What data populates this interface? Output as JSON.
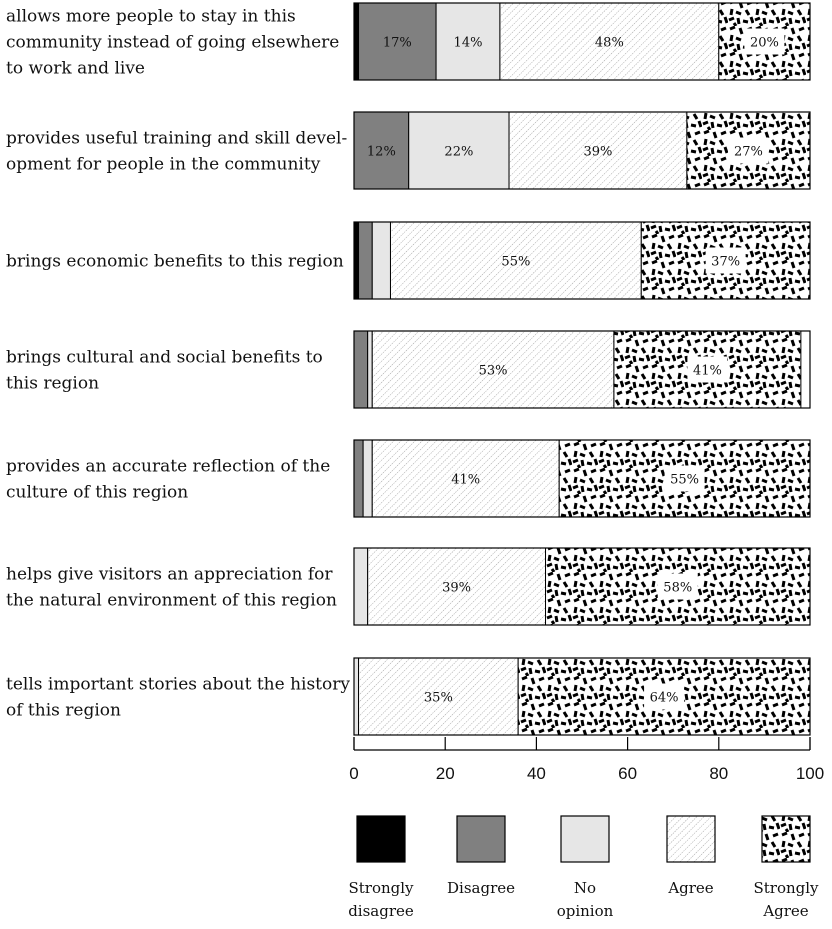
{
  "chart_data": {
    "type": "bar",
    "orientation": "horizontal",
    "stacked": true,
    "categories": [
      "allows more people to stay in this community instead of going elsewhere to work and live",
      "provides useful training and skill development for people in the community",
      "brings economic benefits to this region",
      "brings cultural and social benefits to this region",
      "provides an accurate reflection of the culture of this region",
      "helps give visitors an appreciation for the natural environment of this region",
      "tells important stories about the history of this region"
    ],
    "category_lines": [
      [
        "allows more people to stay in this",
        "community instead of going elsewhere",
        "to work and live"
      ],
      [
        "provides useful training and skill devel-",
        "opment for people in the community"
      ],
      [
        "brings economic benefits to this region"
      ],
      [
        "brings cultural and social benefits to",
        "this region"
      ],
      [
        "provides an accurate reflection of the",
        "culture of this region"
      ],
      [
        "helps give visitors an appreciation for",
        "the natural environment of this region"
      ],
      [
        "tells important stories about the history",
        "of this region"
      ]
    ],
    "series": [
      {
        "name": "Strongly disagree",
        "name_lines": [
          "Strongly",
          "disagree"
        ],
        "color": "#000000",
        "pattern": "solid",
        "values": [
          1,
          0,
          1,
          0,
          0,
          0,
          0
        ]
      },
      {
        "name": "Disagree",
        "name_lines": [
          "Disagree"
        ],
        "color": "#808080",
        "pattern": "solid",
        "values": [
          17,
          12,
          3,
          3,
          2,
          0,
          0
        ]
      },
      {
        "name": "No opinion",
        "name_lines": [
          "No",
          "opinion"
        ],
        "color": "#e6e6e6",
        "pattern": "solid",
        "values": [
          14,
          22,
          4,
          1,
          2,
          3,
          1
        ]
      },
      {
        "name": "Agree",
        "name_lines": [
          "Agree"
        ],
        "color": "#ffffff",
        "pattern": "fine-diagonal-dots",
        "values": [
          48,
          39,
          55,
          53,
          41,
          39,
          35
        ]
      },
      {
        "name": "Strongly Agree",
        "name_lines": [
          "Strongly",
          "Agree"
        ],
        "color": "#000000",
        "pattern": "dashes",
        "values": [
          20,
          27,
          37,
          41,
          55,
          58,
          64
        ]
      }
    ],
    "value_labels": [
      [
        null,
        "17%",
        "14%",
        "48%",
        "20%"
      ],
      [
        null,
        "12%",
        "22%",
        "39%",
        "27%"
      ],
      [
        null,
        null,
        null,
        "55%",
        "37%"
      ],
      [
        null,
        null,
        null,
        "53%",
        "41%"
      ],
      [
        null,
        null,
        null,
        "41%",
        "55%"
      ],
      [
        null,
        null,
        null,
        "39%",
        "58%"
      ],
      [
        null,
        null,
        null,
        "35%",
        "64%"
      ]
    ],
    "xlim": [
      0,
      100
    ],
    "xticks": [
      "0",
      "20",
      "40",
      "60",
      "80",
      "100"
    ],
    "legend_position": "bottom",
    "grid": false
  }
}
